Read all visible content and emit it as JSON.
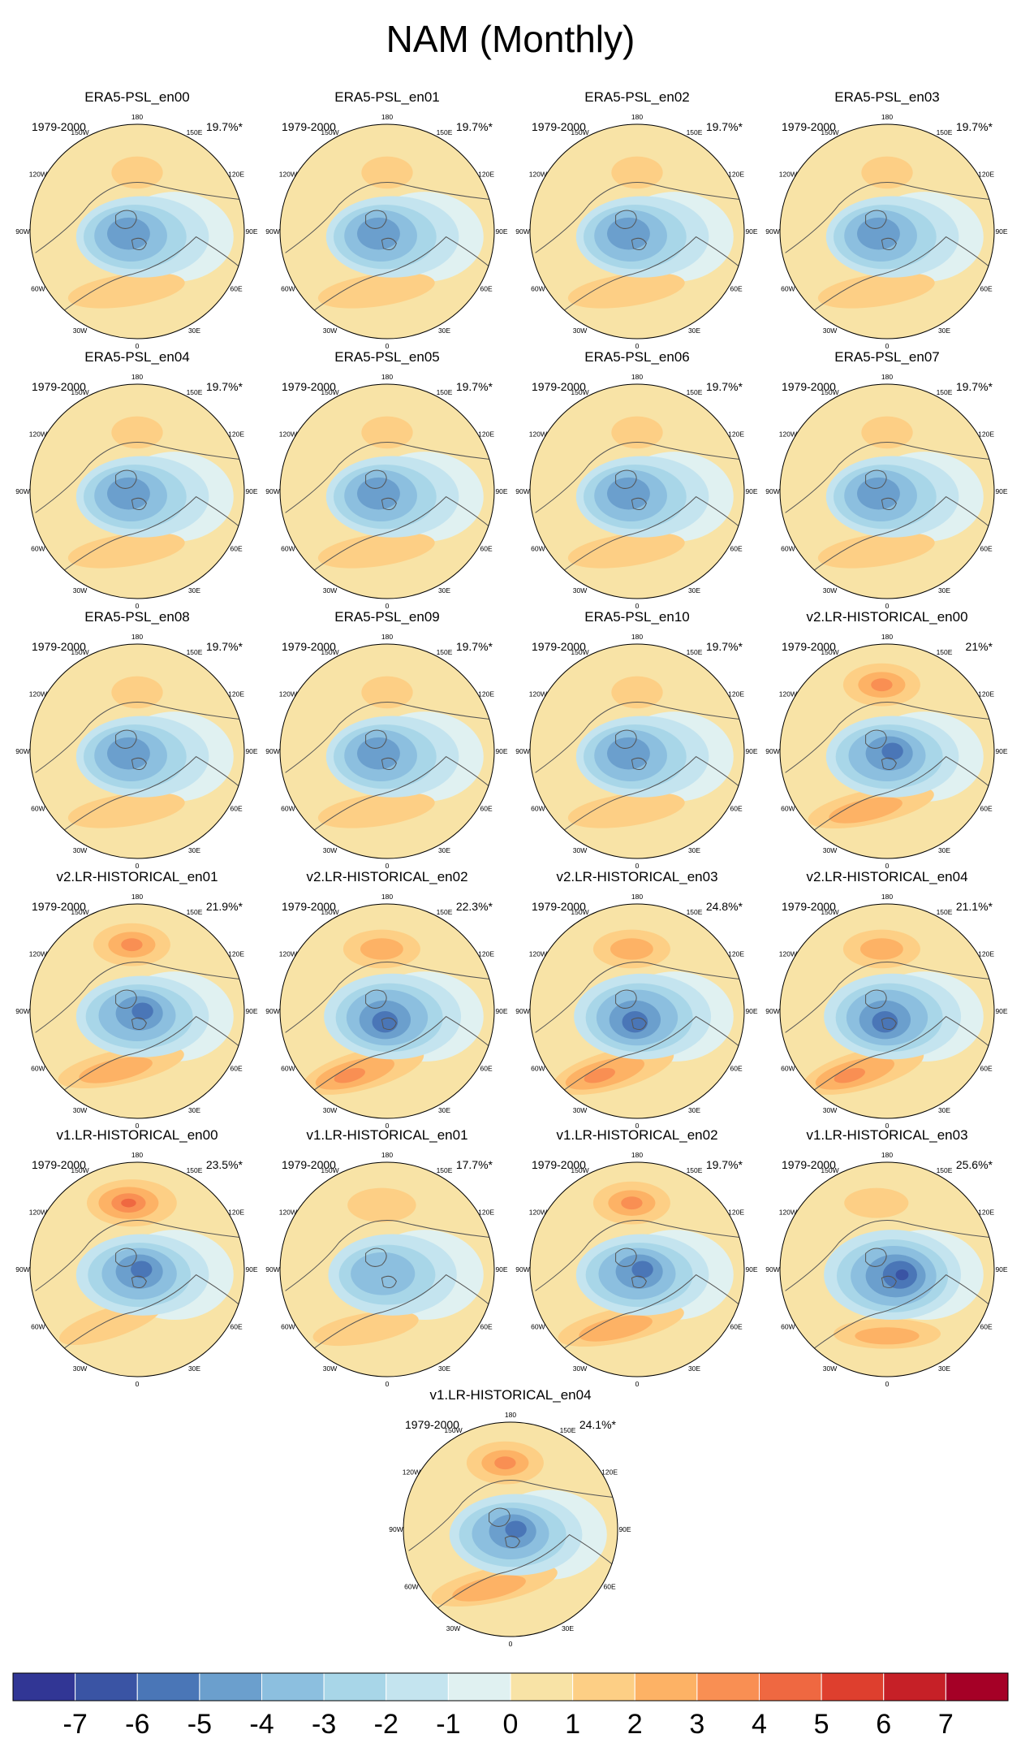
{
  "chart_data": {
    "type": "polar-contour-panels",
    "title": "NAM (Monthly)",
    "period": "1979-2000",
    "longitude_labels": [
      "180",
      "150E",
      "120E",
      "90E",
      "60E",
      "30E",
      "0",
      "30W",
      "60W",
      "90W",
      "120W",
      "150W"
    ],
    "panels": [
      {
        "name": "ERA5-PSL_en00",
        "pct": "19.7%*",
        "pattern": "era5"
      },
      {
        "name": "ERA5-PSL_en01",
        "pct": "19.7%*",
        "pattern": "era5"
      },
      {
        "name": "ERA5-PSL_en02",
        "pct": "19.7%*",
        "pattern": "era5"
      },
      {
        "name": "ERA5-PSL_en03",
        "pct": "19.7%*",
        "pattern": "era5"
      },
      {
        "name": "ERA5-PSL_en04",
        "pct": "19.7%*",
        "pattern": "era5"
      },
      {
        "name": "ERA5-PSL_en05",
        "pct": "19.7%*",
        "pattern": "era5"
      },
      {
        "name": "ERA5-PSL_en06",
        "pct": "19.7%*",
        "pattern": "era5"
      },
      {
        "name": "ERA5-PSL_en07",
        "pct": "19.7%*",
        "pattern": "era5"
      },
      {
        "name": "ERA5-PSL_en08",
        "pct": "19.7%*",
        "pattern": "era5"
      },
      {
        "name": "ERA5-PSL_en09",
        "pct": "19.7%*",
        "pattern": "era5"
      },
      {
        "name": "ERA5-PSL_en10",
        "pct": "19.7%*",
        "pattern": "era5"
      },
      {
        "name": "v2.LR-HISTORICAL_en00",
        "pct": "21%*",
        "pattern": "strong-pacific"
      },
      {
        "name": "v2.LR-HISTORICAL_en01",
        "pct": "21.9%*",
        "pattern": "strong-pacific"
      },
      {
        "name": "v2.LR-HISTORICAL_en02",
        "pct": "22.3%*",
        "pattern": "strong-atlantic"
      },
      {
        "name": "v2.LR-HISTORICAL_en03",
        "pct": "24.8%*",
        "pattern": "strong-atlantic"
      },
      {
        "name": "v2.LR-HISTORICAL_en04",
        "pct": "21.1%*",
        "pattern": "strong-atlantic"
      },
      {
        "name": "v1.LR-HISTORICAL_en00",
        "pct": "23.5%*",
        "pattern": "very-strong-pacific"
      },
      {
        "name": "v1.LR-HISTORICAL_en01",
        "pct": "17.7%*",
        "pattern": "weak"
      },
      {
        "name": "v1.LR-HISTORICAL_en02",
        "pct": "19.7%*",
        "pattern": "strong-pacific"
      },
      {
        "name": "v1.LR-HISTORICAL_en03",
        "pct": "25.6%*",
        "pattern": "strong-low"
      },
      {
        "name": "v1.LR-HISTORICAL_en04",
        "pct": "24.1%*",
        "pattern": "strong-pacific"
      }
    ],
    "colorbar": {
      "levels": [
        -7,
        -6,
        -5,
        -4,
        -3,
        -2,
        -1,
        0,
        1,
        2,
        3,
        4,
        5,
        6,
        7
      ],
      "colors": [
        "#313695",
        "#3a54a4",
        "#4a76b7",
        "#6b9fcd",
        "#8cbfdf",
        "#a8d6e8",
        "#c4e4ef",
        "#e0f1f1",
        "#f8e3a6",
        "#fdcf85",
        "#fdb265",
        "#f98f53",
        "#ef6841",
        "#de3f2e",
        "#c62027",
        "#a50026"
      ]
    }
  }
}
